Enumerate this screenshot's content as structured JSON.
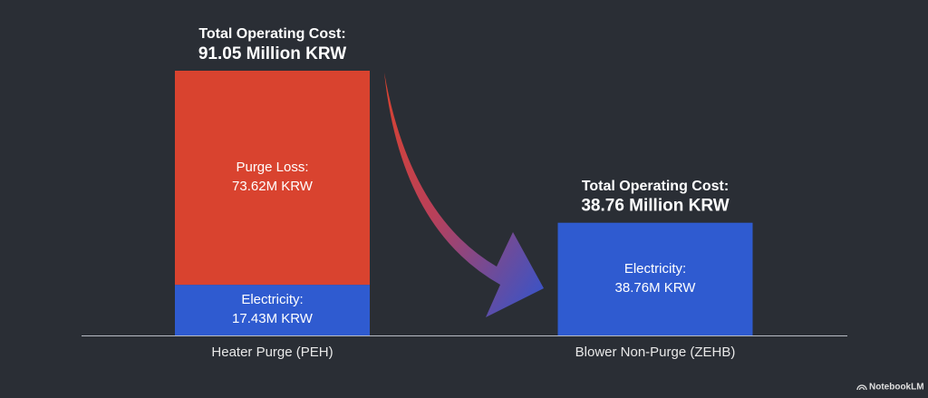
{
  "chart_data": {
    "type": "stacked-bar",
    "categories": [
      "Heater Purge (PEH)",
      "Blower Non-Purge (ZEHB)"
    ],
    "series": [
      {
        "name": "Electricity:",
        "color": "#2f5bd0",
        "values": [
          17.43,
          38.76
        ],
        "value_labels": [
          "17.43M KRW",
          "38.76M KRW"
        ]
      },
      {
        "name": "Purge Loss:",
        "color": "#d9432f",
        "values": [
          73.62,
          null
        ],
        "value_labels": [
          "73.62M KRW",
          null
        ]
      }
    ],
    "annotations": [
      {
        "title": "Total Operating Cost:",
        "text": "91.05 Million KRW"
      },
      {
        "title": "Total Operating Cost:",
        "text": "38.76 Million KRW"
      }
    ],
    "watermark": "NotebookLM"
  }
}
